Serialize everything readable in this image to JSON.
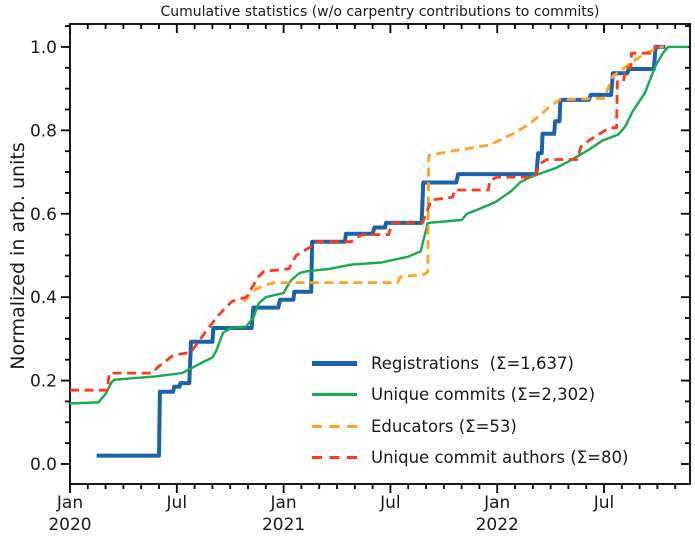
{
  "title": "Cumulative statistics (w/o carpentry contributions to commits)",
  "axes": {
    "ylabel": "Normalized in arb. units",
    "x_unit": "months since 2020-01",
    "xlim": [
      0,
      34.83
    ],
    "ylim": [
      -0.048,
      1.055
    ],
    "x_major_ticks": [
      {
        "m": 0,
        "month": "Jan",
        "year": "2020"
      },
      {
        "m": 6,
        "month": "Jul",
        "year": ""
      },
      {
        "m": 12,
        "month": "Jan",
        "year": "2021"
      },
      {
        "m": 18,
        "month": "Jul",
        "year": ""
      },
      {
        "m": 24,
        "month": "Jan",
        "year": "2022"
      },
      {
        "m": 30,
        "month": "Jul",
        "year": ""
      }
    ],
    "x_minor_step": 1,
    "y_major_ticks": [
      {
        "v": 0.0,
        "label": "0.0"
      },
      {
        "v": 0.2,
        "label": "0.2"
      },
      {
        "v": 0.4,
        "label": "0.4"
      },
      {
        "v": 0.6,
        "label": "0.6"
      },
      {
        "v": 0.8,
        "label": "0.8"
      },
      {
        "v": 1.0,
        "label": "1.0"
      }
    ],
    "y_minor_step": 0.05,
    "grid": false,
    "spine_color": "#000000"
  },
  "legend_position": "lower right inside",
  "chart_data": {
    "type": "line",
    "title": "Cumulative statistics (w/o carpentry contributions to commits)",
    "xlabel": "",
    "ylabel": "Normalized in arb. units",
    "x_unit": "months since 2020-01 (0 = Jan 2020, 12 = Jan 2021, 24 = Jan 2022)",
    "series": [
      {
        "name": "registrations",
        "label": "Registrations  (Σ=1,637)",
        "total": 1637,
        "color": "#1b63a8",
        "width": 4,
        "dash": null,
        "swatch_height": 5,
        "points": [
          [
            1.5,
            0.02
          ],
          [
            5.0,
            0.02
          ],
          [
            5.05,
            0.173
          ],
          [
            5.8,
            0.173
          ],
          [
            5.85,
            0.185
          ],
          [
            6.15,
            0.185
          ],
          [
            6.2,
            0.194
          ],
          [
            6.7,
            0.194
          ],
          [
            6.8,
            0.293
          ],
          [
            8.0,
            0.293
          ],
          [
            8.05,
            0.326
          ],
          [
            10.2,
            0.326
          ],
          [
            10.3,
            0.375
          ],
          [
            11.7,
            0.375
          ],
          [
            11.8,
            0.394
          ],
          [
            12.55,
            0.394
          ],
          [
            12.6,
            0.413
          ],
          [
            13.55,
            0.413
          ],
          [
            13.6,
            0.533
          ],
          [
            15.45,
            0.533
          ],
          [
            15.5,
            0.552
          ],
          [
            17.0,
            0.552
          ],
          [
            17.1,
            0.567
          ],
          [
            17.7,
            0.567
          ],
          [
            17.75,
            0.578
          ],
          [
            19.75,
            0.578
          ],
          [
            19.85,
            0.675
          ],
          [
            21.7,
            0.675
          ],
          [
            21.8,
            0.695
          ],
          [
            26.2,
            0.695
          ],
          [
            26.3,
            0.745
          ],
          [
            26.5,
            0.745
          ],
          [
            26.55,
            0.792
          ],
          [
            27.2,
            0.792
          ],
          [
            27.25,
            0.822
          ],
          [
            27.5,
            0.822
          ],
          [
            27.55,
            0.873
          ],
          [
            29.15,
            0.873
          ],
          [
            29.25,
            0.885
          ],
          [
            30.4,
            0.885
          ],
          [
            30.5,
            0.937
          ],
          [
            31.3,
            0.937
          ],
          [
            31.4,
            0.947
          ],
          [
            32.8,
            0.947
          ],
          [
            32.9,
            1.0
          ],
          [
            33.45,
            1.0
          ]
        ]
      },
      {
        "name": "unique-commits",
        "label": "Unique commits (Σ=2,302)",
        "total": 2302,
        "color": "#17aa4b",
        "width": 2.4,
        "dash": null,
        "swatch_height": 3,
        "points": [
          [
            0,
            0.145
          ],
          [
            1.6,
            0.148
          ],
          [
            2.0,
            0.168
          ],
          [
            2.35,
            0.197
          ],
          [
            2.5,
            0.202
          ],
          [
            4.8,
            0.21
          ],
          [
            6.3,
            0.218
          ],
          [
            7.5,
            0.245
          ],
          [
            8.0,
            0.255
          ],
          [
            8.2,
            0.27
          ],
          [
            8.6,
            0.315
          ],
          [
            9.0,
            0.325
          ],
          [
            9.9,
            0.33
          ],
          [
            10.3,
            0.35
          ],
          [
            10.6,
            0.385
          ],
          [
            11.0,
            0.4
          ],
          [
            12.0,
            0.41
          ],
          [
            12.4,
            0.44
          ],
          [
            12.9,
            0.458
          ],
          [
            13.3,
            0.462
          ],
          [
            14.6,
            0.468
          ],
          [
            15.8,
            0.478
          ],
          [
            17.5,
            0.483
          ],
          [
            19.0,
            0.497
          ],
          [
            19.7,
            0.51
          ],
          [
            20.1,
            0.578
          ],
          [
            22.0,
            0.585
          ],
          [
            22.3,
            0.6
          ],
          [
            22.9,
            0.61
          ],
          [
            23.9,
            0.628
          ],
          [
            24.8,
            0.655
          ],
          [
            25.3,
            0.676
          ],
          [
            26.0,
            0.69
          ],
          [
            27.3,
            0.71
          ],
          [
            28.0,
            0.725
          ],
          [
            28.6,
            0.74
          ],
          [
            29.2,
            0.755
          ],
          [
            29.9,
            0.775
          ],
          [
            30.8,
            0.79
          ],
          [
            31.2,
            0.81
          ],
          [
            31.6,
            0.845
          ],
          [
            32.3,
            0.89
          ],
          [
            32.9,
            0.955
          ],
          [
            33.3,
            0.985
          ],
          [
            33.6,
            1.0
          ],
          [
            34.75,
            1.0
          ]
        ]
      },
      {
        "name": "educators",
        "label": "Educators (Σ=53)",
        "total": 53,
        "color": "#ffa126",
        "width": 2.8,
        "dash": [
          9,
          5.5
        ],
        "swatch_height": 3,
        "points": [
          [
            9.75,
            0.39
          ],
          [
            10.4,
            0.418
          ],
          [
            10.9,
            0.428
          ],
          [
            11.5,
            0.435
          ],
          [
            18.4,
            0.435
          ],
          [
            18.55,
            0.448
          ],
          [
            19.9,
            0.455
          ],
          [
            20.1,
            0.46
          ],
          [
            20.15,
            0.74
          ],
          [
            21.4,
            0.75
          ],
          [
            23.6,
            0.765
          ],
          [
            24.8,
            0.79
          ],
          [
            25.8,
            0.815
          ],
          [
            27.1,
            0.862
          ],
          [
            27.5,
            0.873
          ],
          [
            30.0,
            0.877
          ],
          [
            30.5,
            0.93
          ],
          [
            31.3,
            0.955
          ],
          [
            32.2,
            0.982
          ],
          [
            33.2,
            1.0
          ],
          [
            33.35,
            1.0
          ]
        ]
      },
      {
        "name": "unique-commit-authors",
        "label": "Unique commit authors (Σ=80)",
        "total": 80,
        "color": "#fb3a1e",
        "width": 2.8,
        "dash": [
          9,
          5.5
        ],
        "swatch_height": 3,
        "points": [
          [
            0,
            0.177
          ],
          [
            2.1,
            0.177
          ],
          [
            2.2,
            0.218
          ],
          [
            4.6,
            0.218
          ],
          [
            5.0,
            0.235
          ],
          [
            5.2,
            0.24
          ],
          [
            5.7,
            0.258
          ],
          [
            6.0,
            0.262
          ],
          [
            6.8,
            0.268
          ],
          [
            7.5,
            0.31
          ],
          [
            8.3,
            0.355
          ],
          [
            9.1,
            0.39
          ],
          [
            9.9,
            0.4
          ],
          [
            10.6,
            0.45
          ],
          [
            10.9,
            0.462
          ],
          [
            12.3,
            0.468
          ],
          [
            12.7,
            0.5
          ],
          [
            13.5,
            0.52
          ],
          [
            13.8,
            0.533
          ],
          [
            15.8,
            0.533
          ],
          [
            16.4,
            0.55
          ],
          [
            17.9,
            0.55
          ],
          [
            18.1,
            0.578
          ],
          [
            19.8,
            0.578
          ],
          [
            20.0,
            0.6
          ],
          [
            20.3,
            0.633
          ],
          [
            21.5,
            0.64
          ],
          [
            21.6,
            0.657
          ],
          [
            23.5,
            0.657
          ],
          [
            23.6,
            0.68
          ],
          [
            24.0,
            0.688
          ],
          [
            26.1,
            0.688
          ],
          [
            26.4,
            0.72
          ],
          [
            26.8,
            0.73
          ],
          [
            28.5,
            0.73
          ],
          [
            28.7,
            0.76
          ],
          [
            29.2,
            0.777
          ],
          [
            30.3,
            0.806
          ],
          [
            30.7,
            0.806
          ],
          [
            30.75,
            0.917
          ],
          [
            31.1,
            0.917
          ],
          [
            31.2,
            0.95
          ],
          [
            31.5,
            0.95
          ],
          [
            31.55,
            0.985
          ],
          [
            32.6,
            0.985
          ],
          [
            32.9,
            1.0
          ],
          [
            33.05,
            1.0
          ]
        ]
      }
    ]
  }
}
